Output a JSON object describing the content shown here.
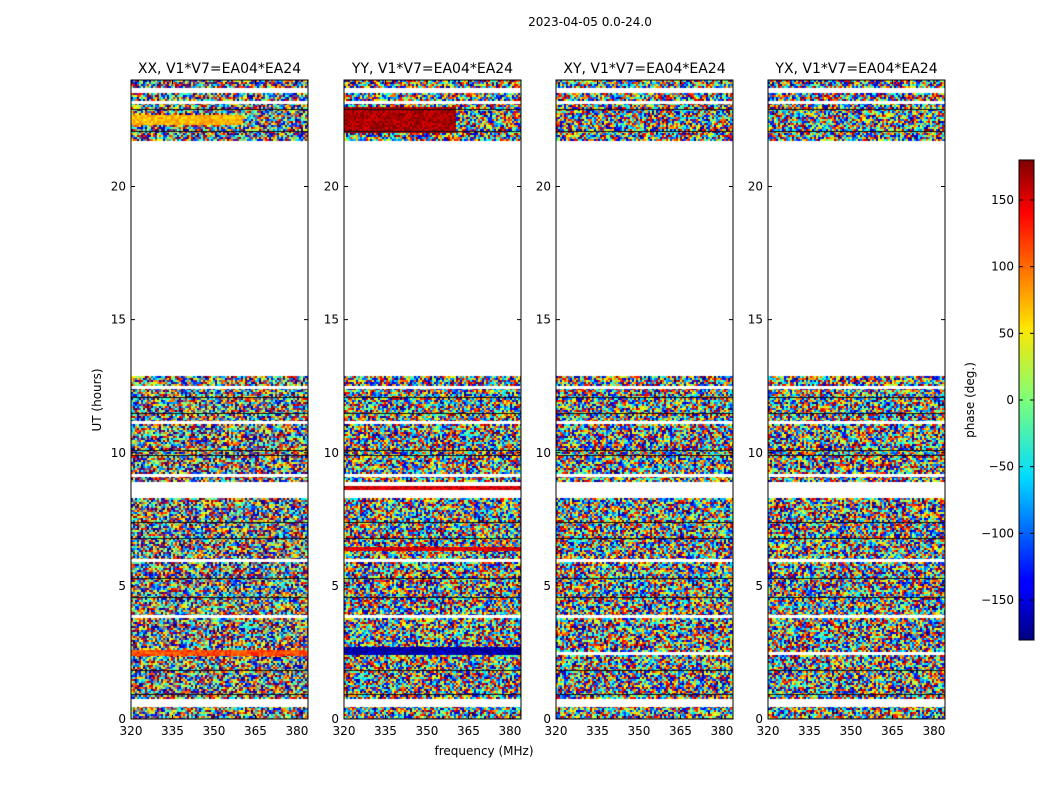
{
  "chart_data": {
    "type": "heatmap",
    "title": "2023-04-05 0.0-24.0",
    "xlabel": "frequency (MHz)",
    "ylabel": "UT (hours)",
    "xlim": [
      320,
      384
    ],
    "ylim": [
      0,
      24
    ],
    "xticks": [
      320,
      335,
      350,
      365,
      380
    ],
    "yticks": [
      0,
      5,
      10,
      15,
      20
    ],
    "colorbar": {
      "label": "phase (deg.)",
      "range": [
        -180,
        180
      ],
      "ticks": [
        150,
        100,
        50,
        0,
        -50,
        -100,
        -150
      ],
      "tick_labels": [
        "150",
        "100",
        "50",
        "0",
        "−50",
        "−100",
        "−150"
      ],
      "colormap": "jet"
    },
    "panels": [
      {
        "title": "XX, V1*V7=EA04*EA24",
        "strong_phase_bands": [
          {
            "ut_start": 22.3,
            "ut_end": 22.7,
            "freq_start": 320,
            "freq_end": 360,
            "phase": 70
          },
          {
            "ut_start": 2.4,
            "ut_end": 2.6,
            "freq_start": 320,
            "freq_end": 384,
            "phase": 110
          }
        ]
      },
      {
        "title": "YY, V1*V7=EA04*EA24",
        "strong_phase_bands": [
          {
            "ut_start": 22.0,
            "ut_end": 23.0,
            "freq_start": 320,
            "freq_end": 360,
            "phase": 165
          },
          {
            "ut_start": 2.45,
            "ut_end": 2.7,
            "freq_start": 320,
            "freq_end": 384,
            "phase": -165
          },
          {
            "ut_start": 8.65,
            "ut_end": 8.75,
            "freq_start": 320,
            "freq_end": 384,
            "phase": 150
          },
          {
            "ut_start": 6.35,
            "ut_end": 6.45,
            "freq_start": 320,
            "freq_end": 384,
            "phase": 150
          }
        ]
      },
      {
        "title": "XY, V1*V7=EA04*EA24",
        "strong_phase_bands": []
      },
      {
        "title": "YX, V1*V7=EA04*EA24",
        "strong_phase_bands": []
      }
    ],
    "data_segments_ut": [
      [
        0.0,
        0.5
      ],
      [
        0.75,
        2.4
      ],
      [
        2.5,
        8.3
      ],
      [
        8.9,
        12.9
      ],
      [
        21.7,
        23.5
      ],
      [
        23.7,
        24.0
      ]
    ],
    "flagged_rows_ut": [
      0.55,
      0.95,
      1.85,
      3.9,
      4.6,
      5.3,
      6.0,
      6.8,
      7.4,
      9.2,
      9.9,
      10.1,
      11.2,
      11.5,
      12.1,
      12.5,
      22.1,
      22.9,
      23.2
    ]
  }
}
